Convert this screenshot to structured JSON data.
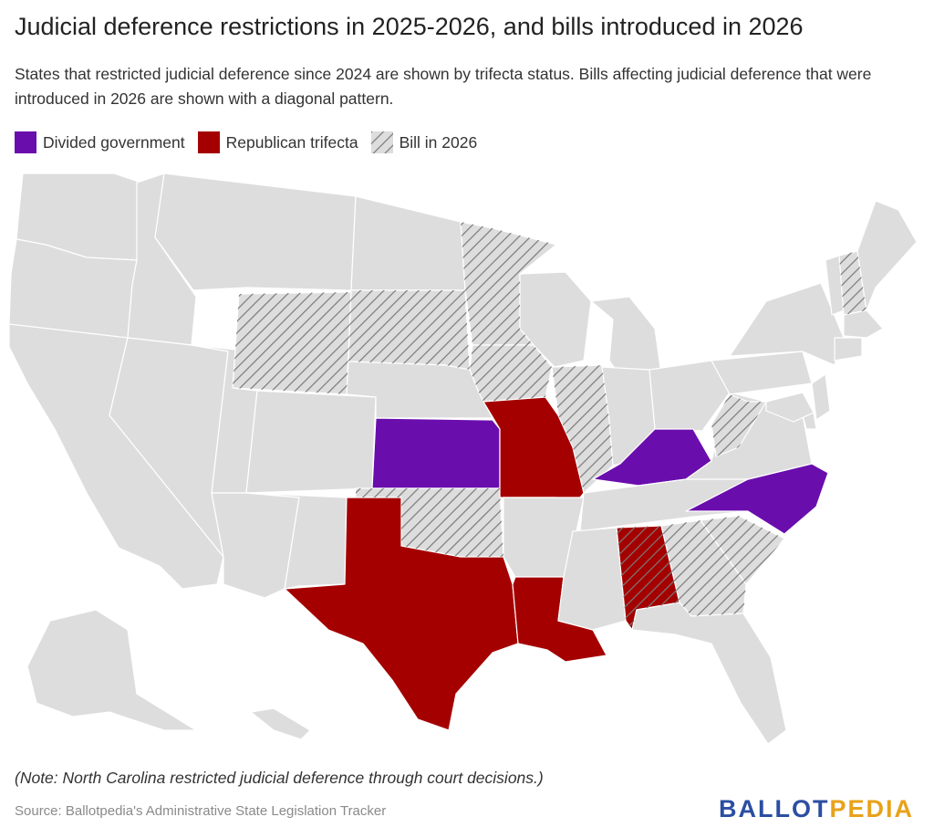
{
  "title": "Judicial deference restrictions in 2025-2026, and bills introduced in 2026",
  "subtitle": "States that restricted judicial deference since 2024 are shown by trifecta status. Bills affecting judicial deference that were introduced in 2026 are shown with a diagonal pattern.",
  "legend": [
    {
      "label": "Divided government",
      "color": "#6a0dad"
    },
    {
      "label": "Republican trifecta",
      "color": "#a50000"
    },
    {
      "label": "Bill in 2026",
      "color": "pattern"
    }
  ],
  "colors": {
    "divided": "#6a0dad",
    "republican": "#a50000",
    "default": "#dddddd",
    "hatch": "#7a7a7a"
  },
  "map": {
    "divided_government": [
      "Kansas",
      "Kentucky",
      "North Carolina"
    ],
    "republican_trifecta": [
      "Missouri",
      "Texas",
      "Louisiana",
      "Alabama"
    ],
    "bill_in_2026": [
      "Wyoming",
      "South Dakota",
      "Minnesota",
      "Iowa",
      "Illinois",
      "Oklahoma",
      "West Virginia",
      "Georgia",
      "South Carolina",
      "New Hampshire",
      "Alabama"
    ]
  },
  "note": "(Note: North Carolina restricted judicial deference through court decisions.)",
  "source": "Source: Ballotpedia's Administrative State Legislation Tracker",
  "brand": {
    "part1": "BALLOT",
    "part2": "PEDIA"
  }
}
